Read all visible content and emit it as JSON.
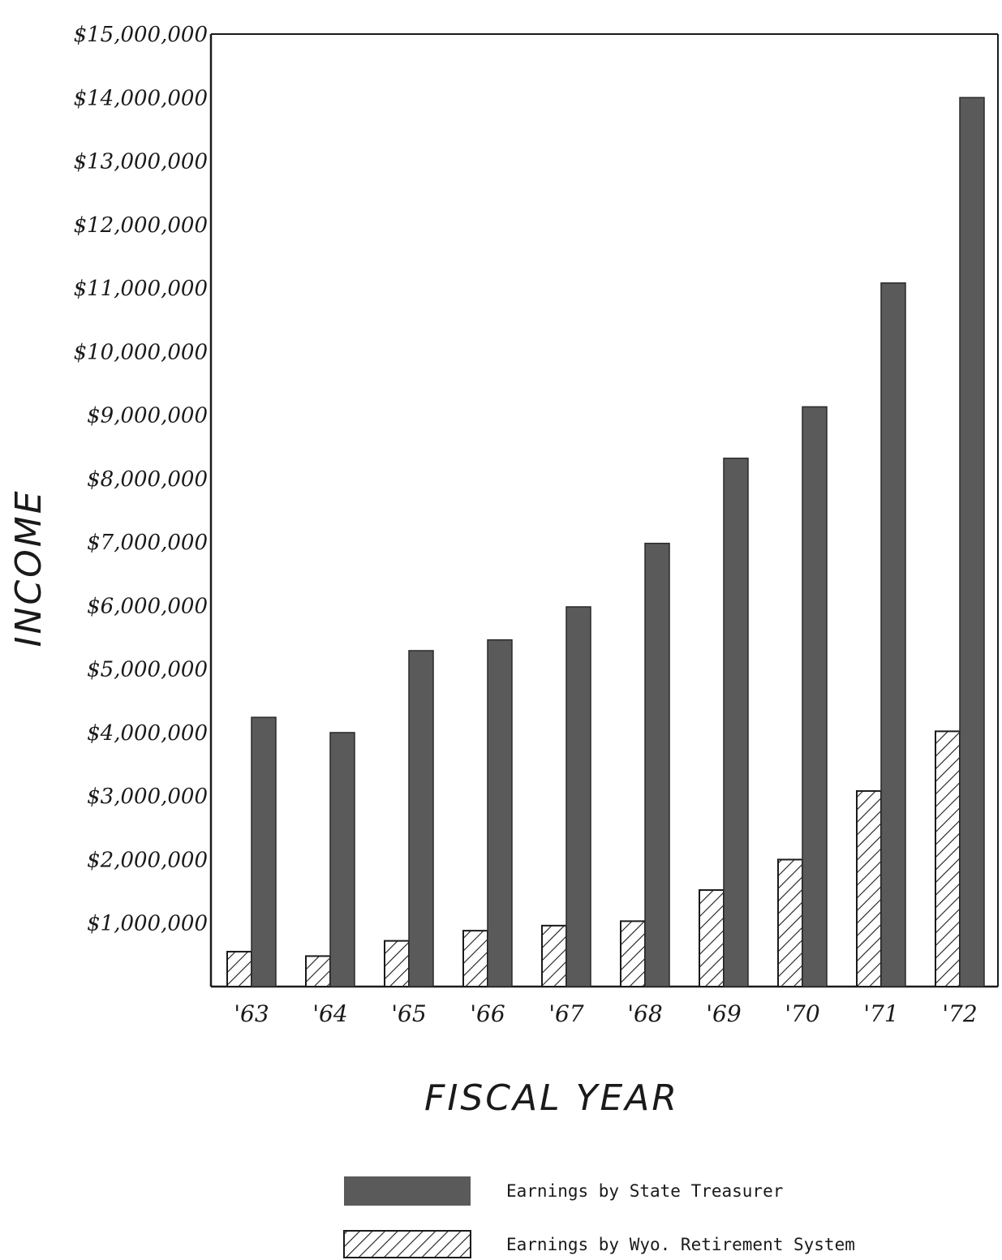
{
  "chart_data": {
    "type": "bar",
    "title": "",
    "xlabel": "FISCAL YEAR",
    "ylabel": "INCOME",
    "ylim": [
      0,
      15000000
    ],
    "yticks": [
      1000000,
      2000000,
      3000000,
      4000000,
      5000000,
      6000000,
      7000000,
      8000000,
      9000000,
      10000000,
      11000000,
      12000000,
      13000000,
      14000000,
      15000000
    ],
    "ytick_labels": [
      "$1,000,000",
      "$2,000,000",
      "$3,000,000",
      "$4,000,000",
      "$5,000,000",
      "$6,000,000",
      "$7,000,000",
      "$8,000,000",
      "$9,000,000",
      "$10,000,000",
      "$11,000,000",
      "$12,000,000",
      "$13,000,000",
      "$14,000,000",
      "$15,000,000"
    ],
    "categories": [
      "'63",
      "'64",
      "'65",
      "'66",
      "'67",
      "'68",
      "'69",
      "'70",
      "'71",
      "'72"
    ],
    "series": [
      {
        "name": "Earnings by Wyo. Retirement System",
        "pattern": "hatched",
        "values": [
          550000,
          480000,
          720000,
          880000,
          960000,
          1030000,
          1520000,
          2000000,
          3080000,
          4020000
        ]
      },
      {
        "name": "Earnings by State Treasurer",
        "pattern": "solid",
        "color": "#5a5a5a",
        "values": [
          4240000,
          4000000,
          5290000,
          5460000,
          5980000,
          6980000,
          8320000,
          9130000,
          11080000,
          14000000
        ]
      }
    ],
    "grid": false,
    "legend_position": "bottom-center"
  }
}
